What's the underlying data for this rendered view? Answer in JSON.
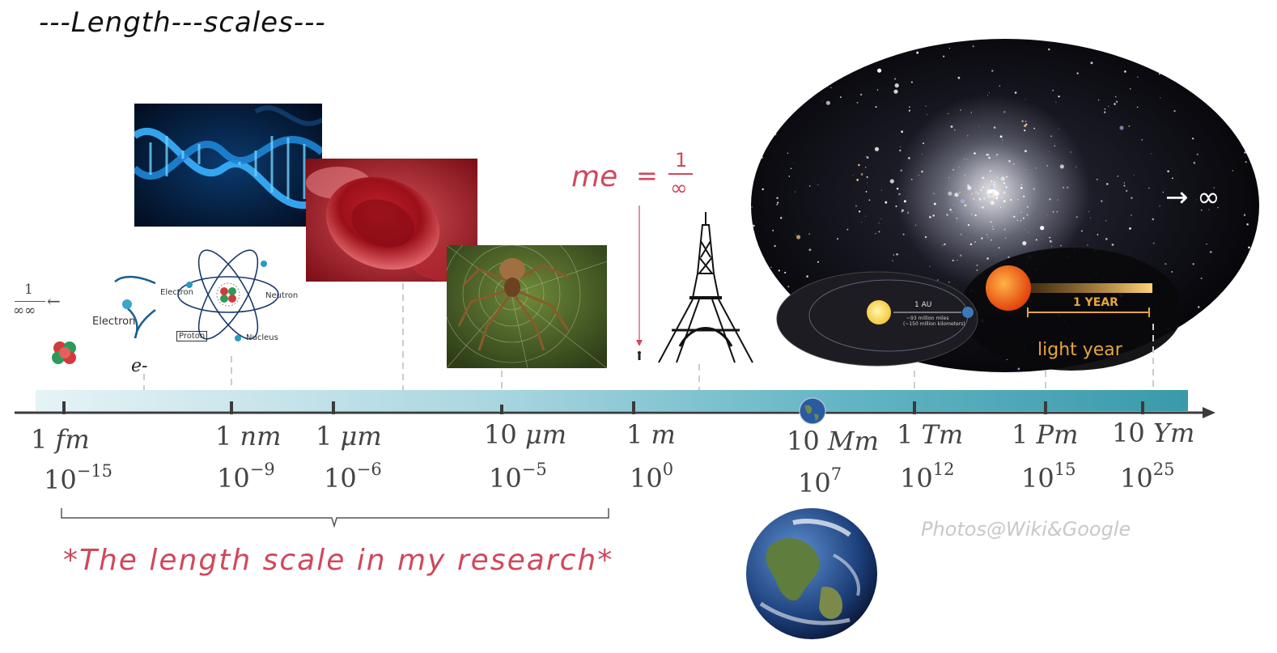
{
  "title": "---Length---scales---",
  "axis": {
    "ticks": [
      {
        "unit_num": "1",
        "unit": "fm",
        "base": "10",
        "exp": "−15"
      },
      {
        "unit_num": "1",
        "unit": "nm",
        "base": "10",
        "exp": "−9"
      },
      {
        "unit_num": "1",
        "unit": "μm",
        "base": "10",
        "exp": "−6"
      },
      {
        "unit_num": "10",
        "unit": "μm",
        "base": "10",
        "exp": "−5"
      },
      {
        "unit_num": "1",
        "unit": "m",
        "base": "10",
        "exp": "0"
      },
      {
        "unit_num": "10",
        "unit": "Mm",
        "base": "10",
        "exp": "7"
      },
      {
        "unit_num": "1",
        "unit": "Tm",
        "base": "10",
        "exp": "12"
      },
      {
        "unit_num": "1",
        "unit": "Pm",
        "base": "10",
        "exp": "15"
      },
      {
        "unit_num": "10",
        "unit": "Ym",
        "base": "10",
        "exp": "25"
      }
    ]
  },
  "left_limit": {
    "numerator": "1",
    "denominator": "∞∞",
    "arrow": "←"
  },
  "right_limit": "→ ∞",
  "me_equation": {
    "lhs": "me",
    "eq": "=",
    "numerator": "1",
    "denominator": "∞"
  },
  "electron": {
    "label": "Electron",
    "symbol": "e-"
  },
  "atom": {
    "electron": "Electron",
    "neutron": "Neutron",
    "proton": "Proton",
    "nucleus": "Nucleus"
  },
  "solar": {
    "au_label": "1 AU",
    "au_line1": "~93 million miles",
    "au_line2": "(~150 million kilometers)"
  },
  "lightyear": {
    "year_label": "1 YEAR",
    "caption": "light year"
  },
  "research_note": "*The length scale in my research*",
  "credit": "Photos@Wiki&Google",
  "colors": {
    "accent": "#d0485c",
    "bar_start": "#e6f3f6",
    "bar_end": "#3a9aa9",
    "space": "#0a0a12"
  }
}
